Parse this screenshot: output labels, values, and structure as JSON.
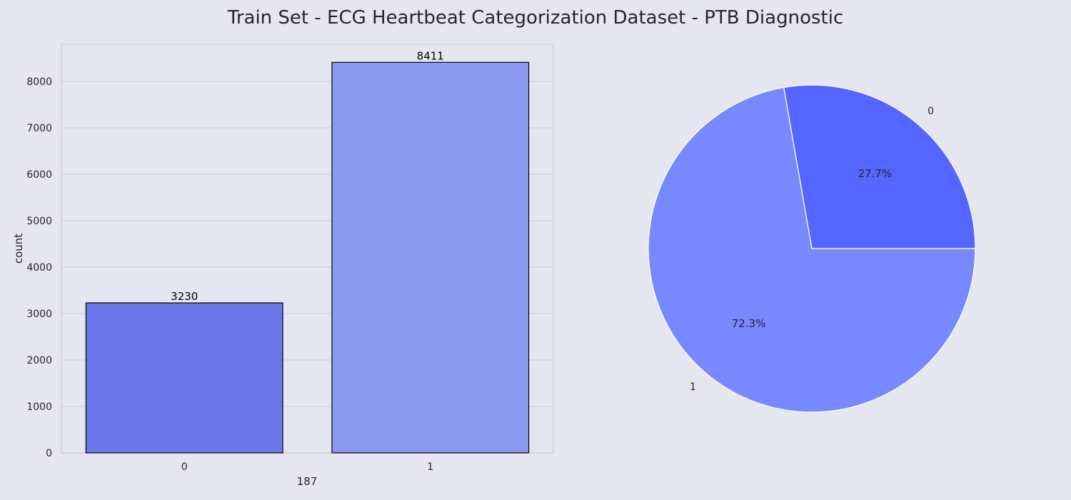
{
  "figure": {
    "title": "Train Set - ECG Heartbeat Categorization Dataset - PTB Diagnostic",
    "background": "#e6e6f0"
  },
  "chart_data": [
    {
      "type": "bar",
      "categories": [
        "0",
        "1"
      ],
      "values": [
        3230,
        8411
      ],
      "data_labels": [
        "3230",
        "8411"
      ],
      "xlabel": "187",
      "ylabel": "count",
      "ylim": [
        0,
        8800
      ],
      "yticks": [
        0,
        1000,
        2000,
        3000,
        4000,
        5000,
        6000,
        7000,
        8000
      ],
      "grid": true,
      "colors": [
        "#6a77e8",
        "#8c97ef"
      ],
      "edge_color": "#000000",
      "axes_background": "#e6e6f0",
      "grid_color": "#cfcfda"
    },
    {
      "type": "pie",
      "labels": [
        "0",
        "1"
      ],
      "values": [
        3230,
        8411
      ],
      "percent_labels": [
        "27.7%",
        "72.3%"
      ],
      "colors": [
        "#5565ff",
        "#7889ff"
      ],
      "edge_color": "#ffffff"
    }
  ]
}
